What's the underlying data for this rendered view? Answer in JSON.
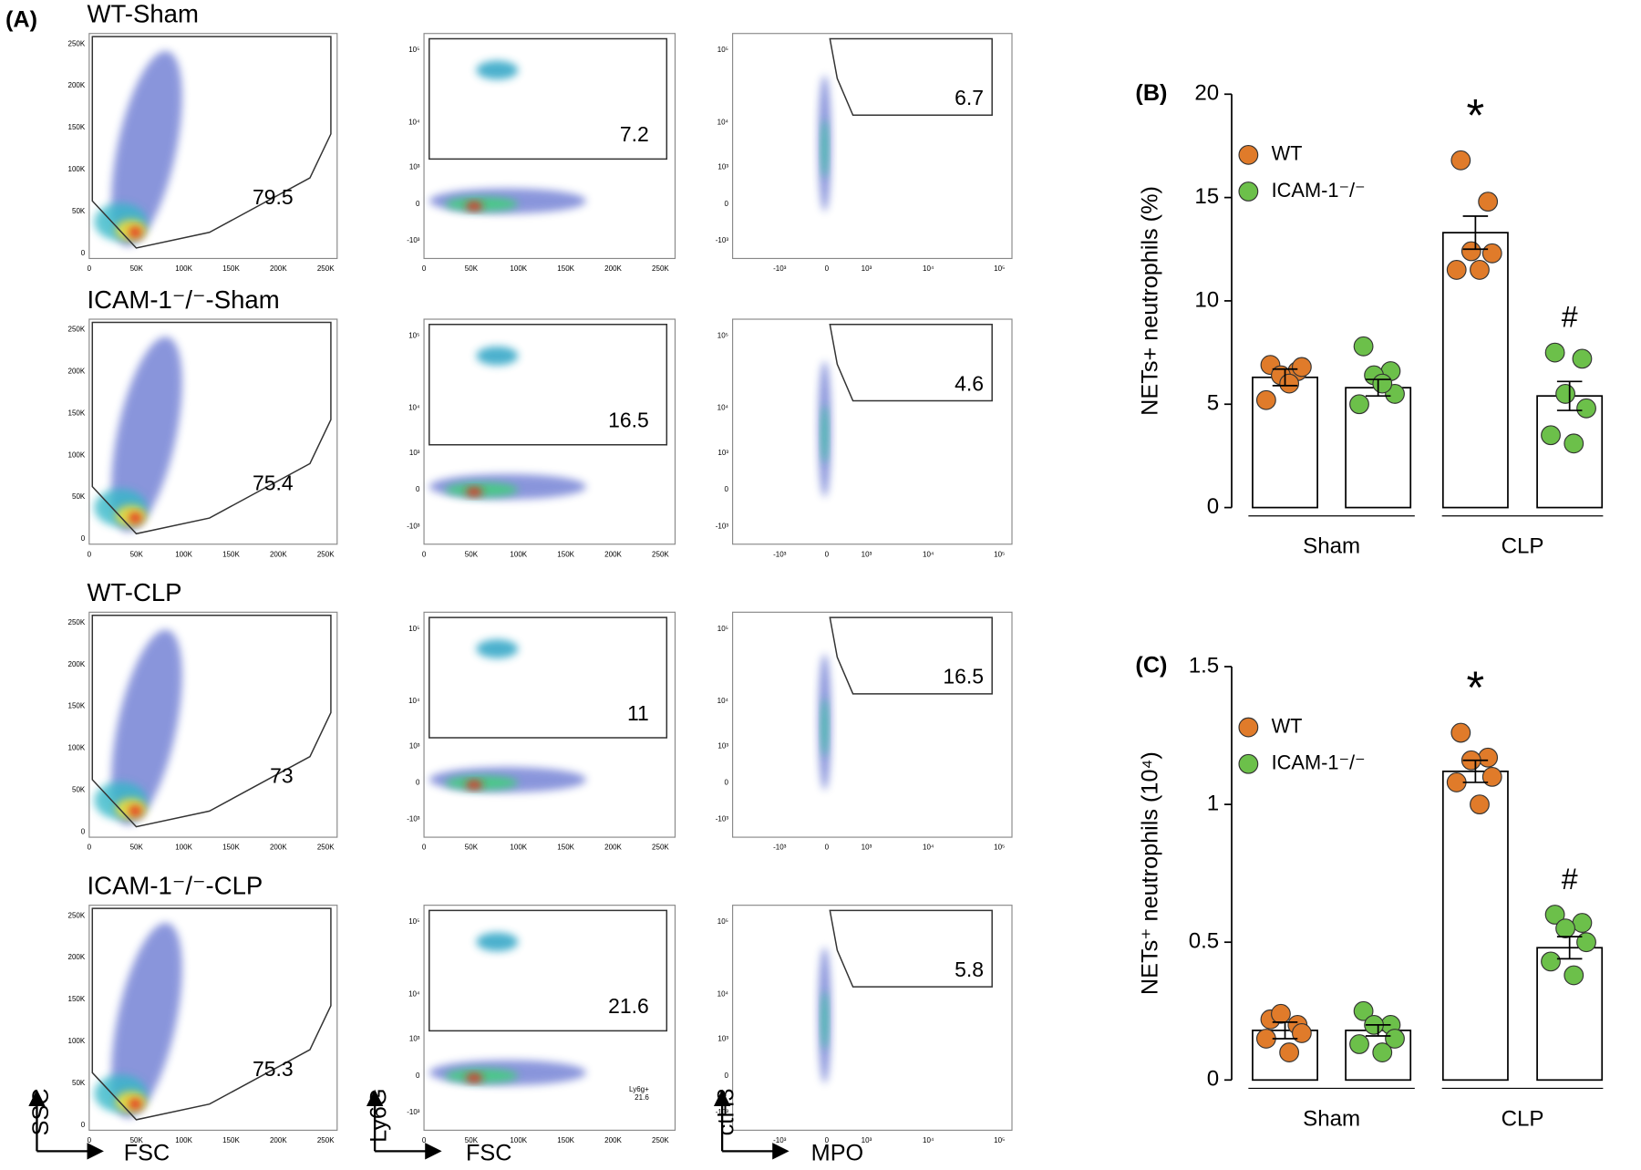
{
  "panel_a": {
    "label": "(A)",
    "rows": [
      {
        "label": "WT-Sham",
        "gates": [
          79.5,
          7.2,
          6.7
        ]
      },
      {
        "label": "ICAM-1⁻/⁻-Sham",
        "gates": [
          75.4,
          16.5,
          4.6
        ]
      },
      {
        "label": "WT-CLP",
        "gates": [
          73,
          11,
          16.5
        ]
      },
      {
        "label": "ICAM-1⁻/⁻-CLP",
        "gates": [
          75.3,
          21.6,
          5.8
        ]
      }
    ],
    "linear_ticks": [
      "0",
      "50K",
      "100K",
      "150K",
      "200K",
      "250K"
    ],
    "log_ticks": [
      "-10³",
      "0",
      "10³",
      "10⁴",
      "10⁵"
    ],
    "axis_labels": [
      [
        "SSC",
        "FSC"
      ],
      [
        "Ly6G",
        "FSC"
      ],
      [
        "ctH3",
        "MPO"
      ]
    ],
    "inset": "Ly6g+"
  },
  "chart_data": [
    {
      "type": "bar",
      "label": "(B)",
      "y_label": "NETs+ neutrophils (%)",
      "categories": [
        "Sham",
        "CLP"
      ],
      "ylim": [
        0,
        20
      ],
      "yticks": [
        0,
        5,
        10,
        15,
        20
      ],
      "series": [
        {
          "name": "WT",
          "color": "#e07b2a",
          "values": [
            6.3,
            13.3
          ],
          "errors": [
            0.4,
            0.8
          ],
          "points": [
            [
              6.9,
              6.6,
              6.4,
              6.8,
              5.2,
              6.0
            ],
            [
              16.8,
              14.8,
              12.4,
              12.3,
              11.5,
              11.5
            ]
          ]
        },
        {
          "name": "ICAM-1⁻/⁻",
          "color": "#6cc04a",
          "values": [
            5.8,
            5.4
          ],
          "errors": [
            0.4,
            0.7
          ],
          "points": [
            [
              7.8,
              6.6,
              6.4,
              5.5,
              5.0,
              6.0
            ],
            [
              7.5,
              7.2,
              5.5,
              4.8,
              3.5,
              3.1
            ]
          ]
        }
      ],
      "annotations": [
        {
          "text": "*",
          "series": 0,
          "category": 1
        },
        {
          "text": "#",
          "series": 1,
          "category": 1
        }
      ]
    },
    {
      "type": "bar",
      "label": "(C)",
      "y_label": "NETs⁺ neutrophils (10⁴)",
      "categories": [
        "Sham",
        "CLP"
      ],
      "ylim": [
        0,
        1.5
      ],
      "yticks": [
        0,
        0.5,
        1,
        1.5
      ],
      "series": [
        {
          "name": "WT",
          "color": "#e07b2a",
          "values": [
            0.18,
            1.12
          ],
          "errors": [
            0.03,
            0.04
          ],
          "points": [
            [
              0.22,
              0.2,
              0.24,
              0.17,
              0.15,
              0.1
            ],
            [
              1.26,
              1.17,
              1.16,
              1.1,
              1.08,
              1.0
            ]
          ]
        },
        {
          "name": "ICAM-1⁻/⁻",
          "color": "#6cc04a",
          "values": [
            0.18,
            0.48
          ],
          "errors": [
            0.02,
            0.04
          ],
          "points": [
            [
              0.25,
              0.2,
              0.2,
              0.15,
              0.13,
              0.1
            ],
            [
              0.6,
              0.57,
              0.55,
              0.5,
              0.43,
              0.38
            ]
          ]
        }
      ],
      "annotations": [
        {
          "text": "*",
          "series": 0,
          "category": 1
        },
        {
          "text": "#",
          "series": 1,
          "category": 1
        }
      ]
    }
  ]
}
